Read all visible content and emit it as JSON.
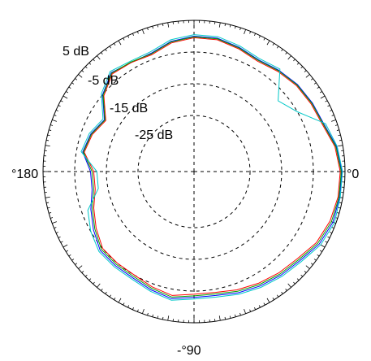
{
  "chart_data": {
    "type": "polar-line",
    "radial_axis": {
      "unit": "dB",
      "range": [
        -35,
        5
      ],
      "ring_labels": [
        "5 dB",
        "-5 dB",
        "-15 dB",
        "-25 dB"
      ],
      "grid_rings_db": [
        5,
        -5,
        -15,
        -25
      ]
    },
    "angle_axis": {
      "labels": {
        "deg_0": "°0",
        "deg_180": "°180",
        "deg_minus_90": "-°90"
      },
      "grid_spokes_deg": [
        0,
        90,
        180,
        270
      ]
    },
    "grid": true,
    "legend": "none",
    "series": [
      {
        "color": "#0000ff",
        "angles_deg": [
          0,
          10,
          20,
          30,
          40,
          50,
          60,
          70,
          80,
          90,
          100,
          110,
          120,
          130,
          140,
          150,
          160,
          170,
          180,
          190,
          200,
          210,
          220,
          230,
          240,
          250,
          260,
          270,
          280,
          290,
          300,
          310,
          320,
          330,
          340,
          350
        ],
        "r_db": [
          4,
          3,
          1,
          0.5,
          0,
          -1,
          -2,
          -1,
          0,
          0,
          -1,
          -3,
          -3,
          -2,
          -5,
          -10,
          -8,
          -7,
          -10,
          -10,
          -8,
          -6,
          -4,
          -4,
          -4,
          -3,
          -2,
          -3,
          -3,
          -2,
          -1,
          0,
          1,
          3,
          4,
          4
        ]
      },
      {
        "color": "#ff0000",
        "angles_deg": [
          0,
          10,
          20,
          30,
          40,
          50,
          60,
          70,
          80,
          90,
          100,
          110,
          120,
          130,
          140,
          150,
          160,
          170,
          180,
          190,
          200,
          210,
          220,
          230,
          240,
          250,
          260,
          270,
          280,
          290,
          300,
          310,
          320,
          330,
          340,
          350
        ],
        "r_db": [
          3.5,
          2.5,
          0.5,
          0,
          -0.5,
          -1.5,
          -2.5,
          -1.5,
          -0.5,
          -0.5,
          -1.5,
          -3.5,
          -3,
          -2.5,
          -5.5,
          -10.5,
          -8.5,
          -7.5,
          -11,
          -11,
          -9,
          -7,
          -5,
          -5,
          -5,
          -4,
          -3,
          -4,
          -4,
          -3,
          -2,
          -1,
          0,
          2,
          3,
          3.5
        ]
      },
      {
        "color": "#00a000",
        "angles_deg": [
          0,
          10,
          20,
          30,
          40,
          50,
          60,
          70,
          80,
          90,
          100,
          110,
          120,
          130,
          140,
          150,
          160,
          170,
          180,
          190,
          200,
          210,
          220,
          230,
          240,
          250,
          260,
          270,
          280,
          290,
          300,
          310,
          320,
          330,
          340,
          350
        ],
        "r_db": [
          3.8,
          2.8,
          0.8,
          0.3,
          -0.2,
          -1.2,
          -2.2,
          -1.2,
          -0.2,
          -0.2,
          -1.2,
          -3.2,
          -2.8,
          -2.2,
          -5.2,
          -10.2,
          -8.2,
          -7.2,
          -10.5,
          -10.5,
          -8.5,
          -6.5,
          -4.5,
          -4.5,
          -4.5,
          -3.5,
          -2.5,
          -3.5,
          -3.5,
          -2.5,
          -1.5,
          -0.5,
          0.5,
          2.5,
          3.5,
          3.8
        ]
      },
      {
        "color": "#00c8c8",
        "angles_deg": [
          0,
          10,
          20,
          30,
          40,
          50,
          60,
          70,
          80,
          90,
          100,
          110,
          120,
          130,
          140,
          150,
          160,
          170,
          180,
          190,
          200,
          210,
          220,
          230,
          240,
          250,
          260,
          270,
          280,
          290,
          300,
          310,
          320,
          330,
          340,
          350
        ],
        "r_db": [
          4.2,
          3.2,
          1.5,
          -5,
          -8,
          -0.5,
          -1.5,
          -0.5,
          0.5,
          0.5,
          -0.5,
          -2.5,
          -2.5,
          -1.5,
          -4.5,
          -9.5,
          -7.5,
          -6.5,
          -12,
          -12,
          -7,
          -5,
          -3.5,
          -3.5,
          -3.5,
          -2.5,
          -1.5,
          -2.5,
          -2.5,
          -1.5,
          -0.5,
          0.5,
          1.5,
          3.5,
          4.5,
          4.2
        ]
      }
    ]
  }
}
